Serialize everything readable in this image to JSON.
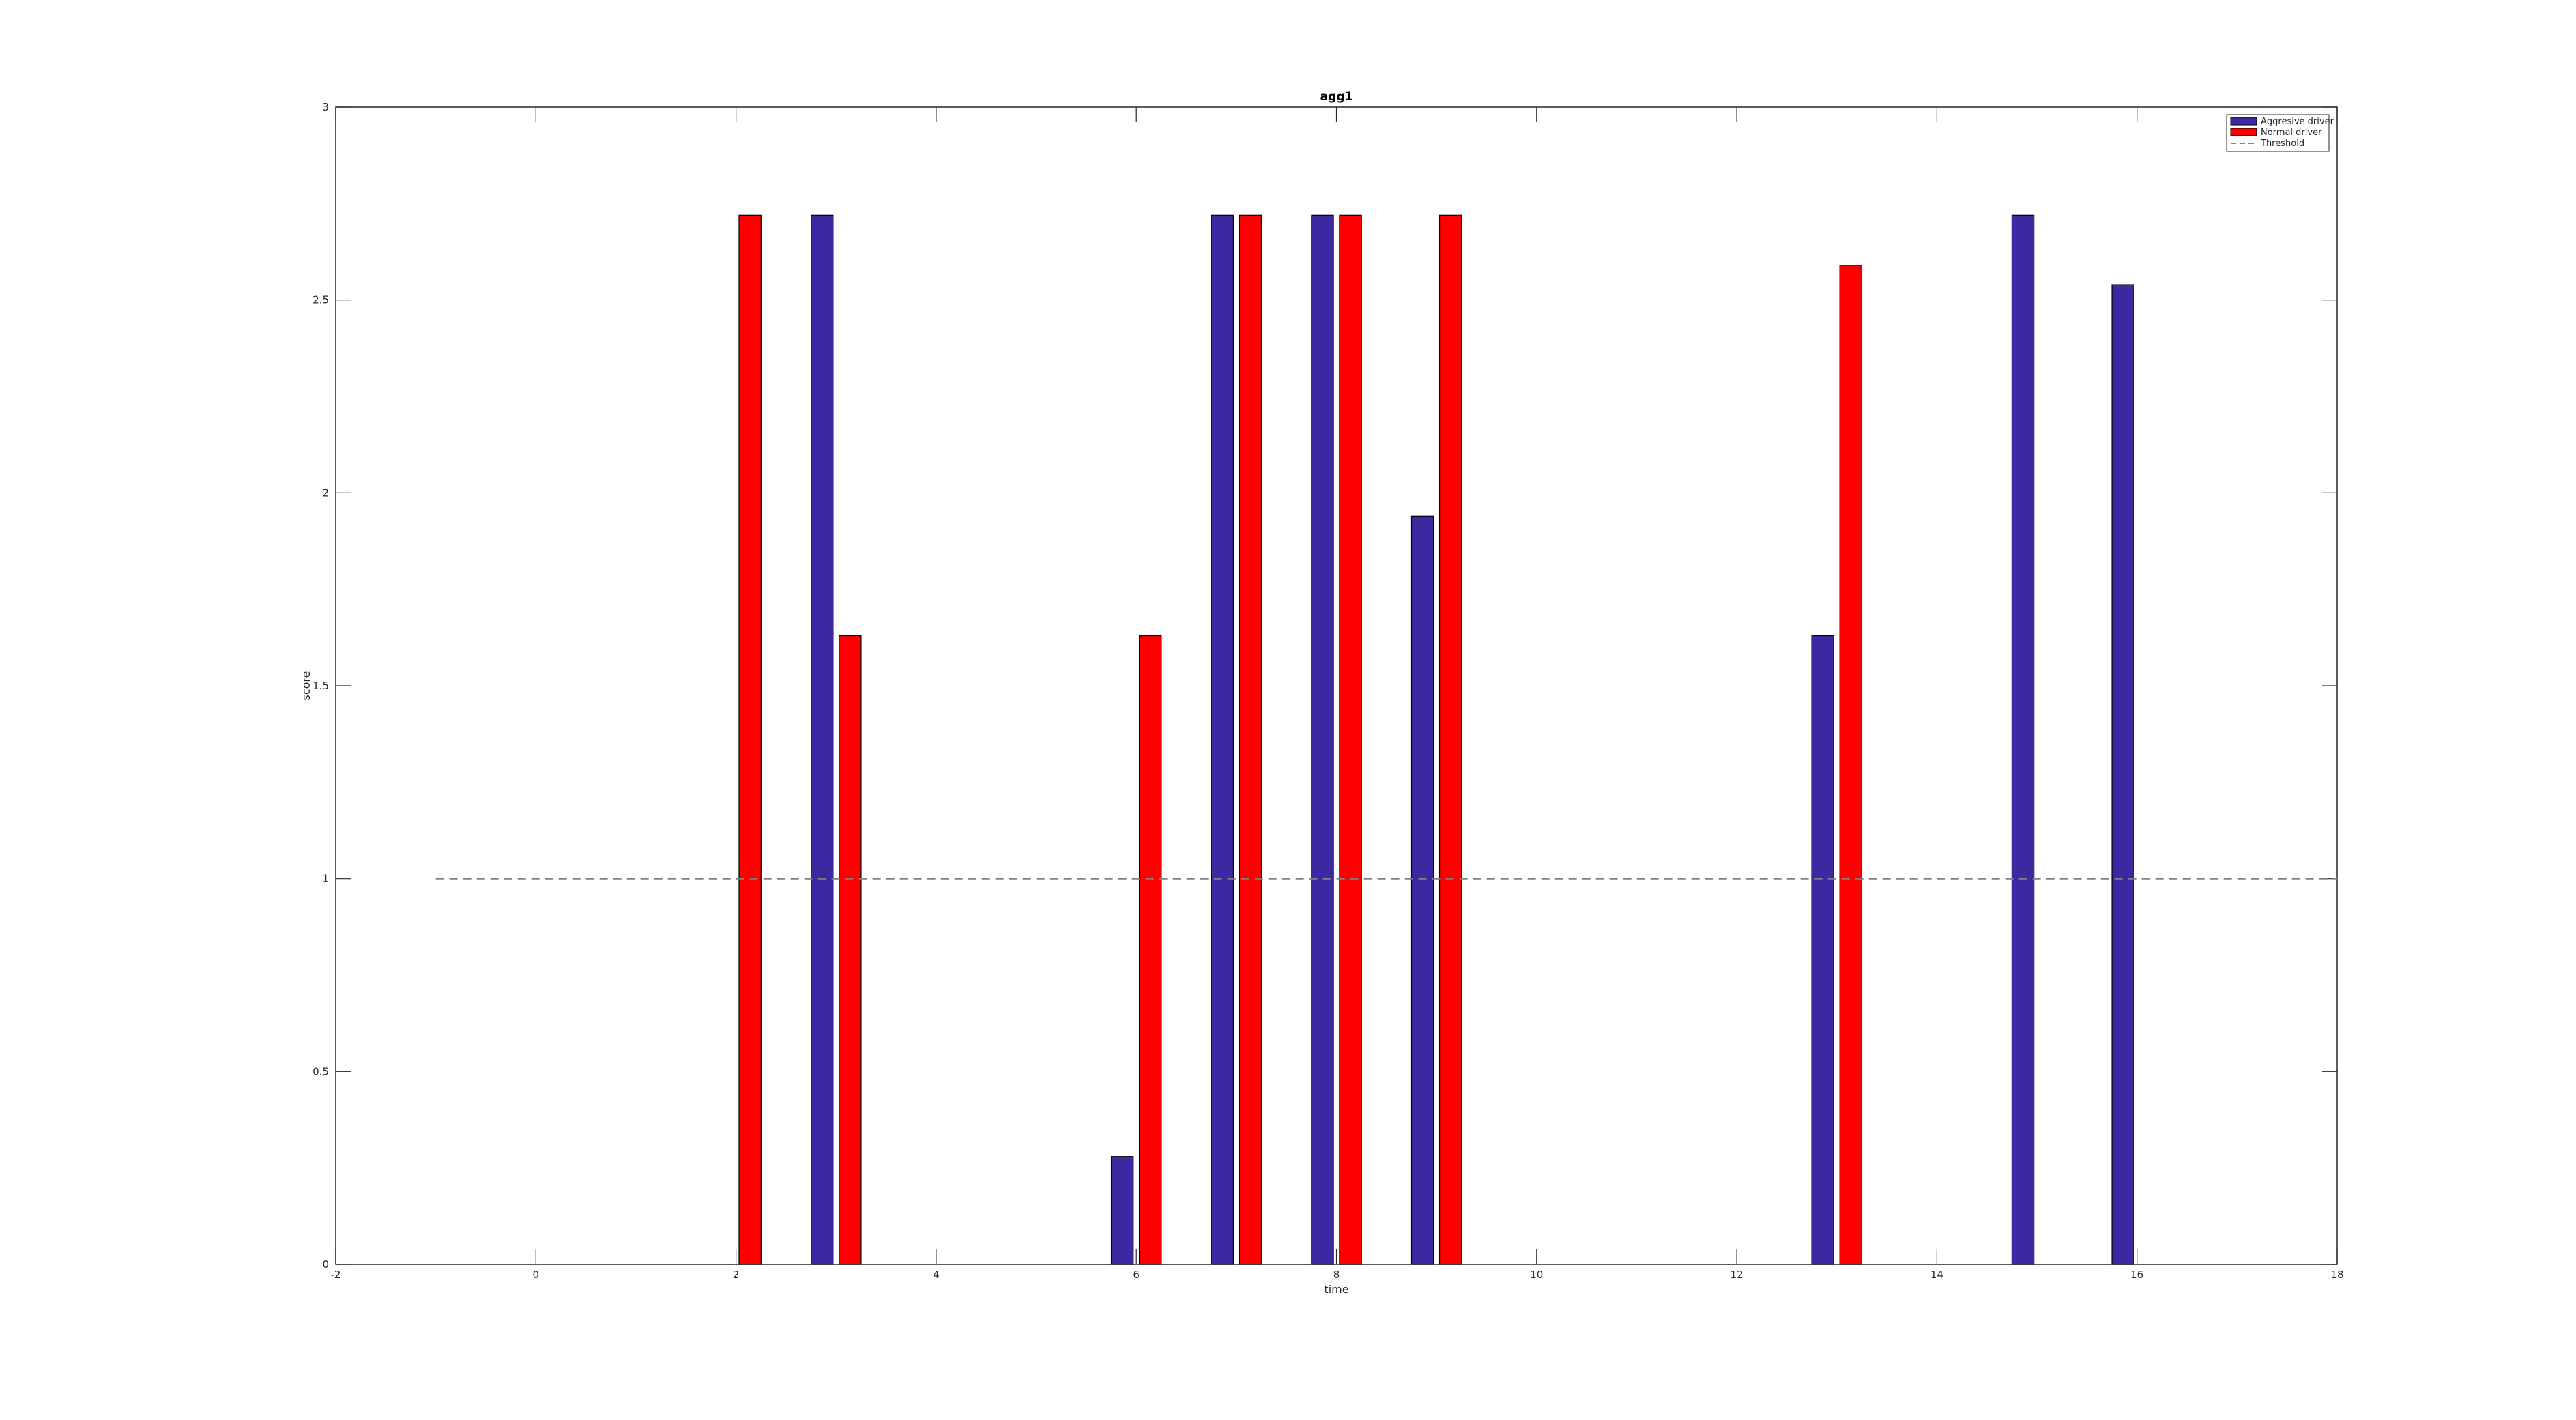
{
  "chart_data": {
    "type": "bar",
    "title": "agg1",
    "xlabel": "time",
    "ylabel": "score",
    "xlim": [
      -2,
      18
    ],
    "ylim": [
      0,
      3
    ],
    "xticks": [
      "-2",
      "0",
      "2",
      "4",
      "6",
      "8",
      "10",
      "12",
      "14",
      "16",
      "18"
    ],
    "yticks": [
      "0",
      "0.5",
      "1",
      "1.5",
      "2",
      "2.5",
      "3"
    ],
    "grid": false,
    "legend_position": "top-right",
    "series": [
      {
        "name": "Aggresive driver",
        "color": "#3c28a0",
        "points": [
          {
            "x": 3,
            "y": 2.72
          },
          {
            "x": 6,
            "y": 0.28
          },
          {
            "x": 7,
            "y": 2.72
          },
          {
            "x": 8,
            "y": 2.72
          },
          {
            "x": 9,
            "y": 1.94
          },
          {
            "x": 13,
            "y": 1.63
          },
          {
            "x": 15,
            "y": 2.72
          },
          {
            "x": 16,
            "y": 2.54
          }
        ]
      },
      {
        "name": "Normal driver",
        "color": "#ff0000",
        "points": [
          {
            "x": 2,
            "y": 2.72
          },
          {
            "x": 3,
            "y": 1.63
          },
          {
            "x": 6,
            "y": 1.63
          },
          {
            "x": 7,
            "y": 2.72
          },
          {
            "x": 8,
            "y": 2.72
          },
          {
            "x": 9,
            "y": 2.72
          },
          {
            "x": 13,
            "y": 2.59
          }
        ]
      }
    ],
    "threshold": {
      "name": "Threshold",
      "y": 1,
      "x_range": [
        -1,
        18
      ],
      "color": "#808080"
    }
  }
}
